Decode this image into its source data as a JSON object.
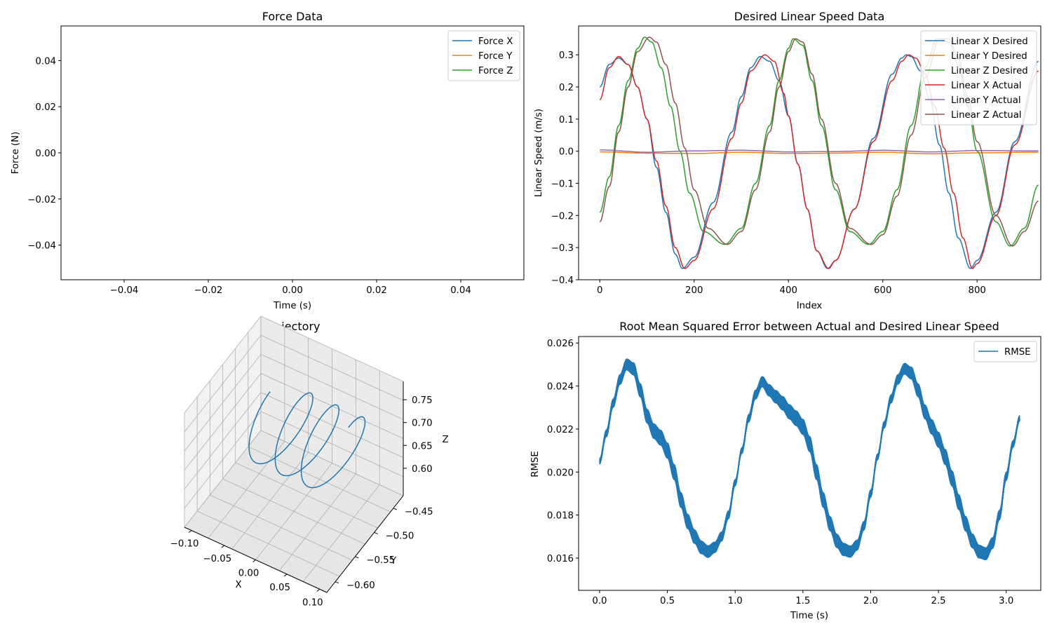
{
  "colors": {
    "c0": "#1f77b4",
    "c1": "#ff7f0e",
    "c2": "#2ca02c",
    "c3": "#d62728",
    "c4": "#9467bd",
    "c5": "#8c564b"
  },
  "chart_data": [
    {
      "id": "force",
      "type": "line",
      "title": "Force Data",
      "xlabel": "Time (s)",
      "ylabel": "Force (N)",
      "xlim": [
        -0.055,
        0.055
      ],
      "ylim": [
        -0.055,
        0.055
      ],
      "xticks": [
        "−0.04",
        "−0.02",
        "0.00",
        "0.02",
        "0.04"
      ],
      "xtick_values": [
        -0.04,
        -0.02,
        0.0,
        0.02,
        0.04
      ],
      "yticks": [
        "−0.04",
        "−0.02",
        "0.00",
        "0.02",
        "0.04"
      ],
      "ytick_values": [
        -0.04,
        -0.02,
        0.0,
        0.02,
        0.04
      ],
      "legend": "top-right",
      "series": [
        {
          "name": "Force X",
          "color": "#1f77b4",
          "values": []
        },
        {
          "name": "Force Y",
          "color": "#ff7f0e",
          "values": []
        },
        {
          "name": "Force Z",
          "color": "#2ca02c",
          "values": []
        }
      ]
    },
    {
      "id": "speed",
      "type": "line",
      "title": "Desired Linear Speed Data",
      "xlabel": "Index",
      "ylabel": "Linear Speed (m/s)",
      "xlim": [
        -45,
        935
      ],
      "ylim": [
        -0.4,
        0.39
      ],
      "xticks": [
        "0",
        "200",
        "400",
        "600",
        "800"
      ],
      "xtick_values": [
        0,
        200,
        400,
        600,
        800
      ],
      "yticks": [
        "−0.4",
        "−0.3",
        "−0.2",
        "−0.1",
        "0.0",
        "0.1",
        "0.2",
        "0.3"
      ],
      "ytick_values": [
        -0.4,
        -0.3,
        -0.2,
        -0.1,
        0.0,
        0.1,
        0.2,
        0.3
      ],
      "legend": "top-right",
      "series": [
        {
          "name": "Linear X Desired",
          "color": "#1f77b4",
          "x": [
            0,
            20,
            40,
            60,
            80,
            100,
            120,
            140,
            160,
            175,
            200,
            240,
            280,
            300,
            320,
            340,
            360,
            380,
            400,
            420,
            440,
            460,
            483,
            500,
            540,
            580,
            620,
            640,
            650,
            660,
            680,
            700,
            720,
            740,
            760,
            786,
            800,
            840,
            880,
            930
          ],
          "values": [
            0.2,
            0.27,
            0.29,
            0.27,
            0.2,
            0.1,
            -0.05,
            -0.19,
            -0.32,
            -0.365,
            -0.33,
            -0.16,
            0.06,
            0.17,
            0.26,
            0.295,
            0.28,
            0.22,
            0.11,
            -0.04,
            -0.18,
            -0.31,
            -0.365,
            -0.34,
            -0.18,
            0.04,
            0.24,
            0.29,
            0.3,
            0.295,
            0.25,
            0.16,
            0.02,
            -0.13,
            -0.27,
            -0.365,
            -0.34,
            -0.19,
            0.03,
            0.28
          ]
        },
        {
          "name": "Linear Y Desired",
          "color": "#ff7f0e",
          "x": [
            0,
            100,
            200,
            300,
            400,
            500,
            600,
            700,
            800,
            930
          ],
          "values": [
            -0.002,
            -0.006,
            -0.007,
            -0.003,
            -0.007,
            -0.006,
            -0.003,
            -0.008,
            -0.005,
            -0.003
          ]
        },
        {
          "name": "Linear Z Desired",
          "color": "#2ca02c",
          "x": [
            0,
            20,
            40,
            60,
            80,
            95,
            110,
            130,
            150,
            170,
            190,
            220,
            265,
            300,
            330,
            360,
            380,
            400,
            410,
            430,
            450,
            470,
            500,
            530,
            570,
            600,
            630,
            660,
            690,
            715,
            740,
            760,
            780,
            800,
            840,
            870,
            900,
            930
          ],
          "values": [
            -0.19,
            -0.08,
            0.08,
            0.22,
            0.32,
            0.355,
            0.34,
            0.26,
            0.14,
            0.0,
            -0.13,
            -0.25,
            -0.29,
            -0.24,
            -0.1,
            0.08,
            0.22,
            0.32,
            0.35,
            0.33,
            0.22,
            0.08,
            -0.12,
            -0.25,
            -0.29,
            -0.25,
            -0.12,
            0.08,
            0.26,
            0.35,
            0.34,
            0.27,
            0.14,
            0.0,
            -0.22,
            -0.295,
            -0.24,
            -0.105
          ]
        },
        {
          "name": "Linear X Actual",
          "color": "#d62728",
          "x": [
            0,
            20,
            40,
            60,
            80,
            100,
            120,
            140,
            160,
            180,
            200,
            240,
            280,
            300,
            320,
            350,
            370,
            390,
            400,
            420,
            440,
            460,
            485,
            500,
            540,
            580,
            620,
            640,
            655,
            670,
            690,
            710,
            730,
            750,
            770,
            790,
            800,
            840,
            880,
            930
          ],
          "values": [
            0.16,
            0.26,
            0.295,
            0.27,
            0.2,
            0.1,
            -0.03,
            -0.17,
            -0.3,
            -0.365,
            -0.34,
            -0.18,
            0.04,
            0.15,
            0.25,
            0.3,
            0.28,
            0.18,
            0.11,
            -0.04,
            -0.18,
            -0.31,
            -0.365,
            -0.34,
            -0.18,
            0.03,
            0.22,
            0.28,
            0.3,
            0.29,
            0.24,
            0.14,
            0.01,
            -0.13,
            -0.27,
            -0.365,
            -0.35,
            -0.2,
            0.02,
            0.25
          ]
        },
        {
          "name": "Linear Y Actual",
          "color": "#9467bd",
          "x": [
            0,
            100,
            200,
            300,
            400,
            500,
            600,
            700,
            800,
            930
          ],
          "values": [
            0.004,
            -0.003,
            0.001,
            0.003,
            -0.002,
            -0.001,
            0.003,
            -0.002,
            0.002,
            0.001
          ]
        },
        {
          "name": "Linear Z Actual",
          "color": "#8c564b",
          "x": [
            0,
            20,
            40,
            60,
            80,
            105,
            120,
            140,
            160,
            180,
            200,
            230,
            270,
            300,
            330,
            360,
            380,
            400,
            415,
            430,
            450,
            470,
            500,
            530,
            575,
            600,
            630,
            660,
            690,
            720,
            740,
            760,
            780,
            800,
            840,
            875,
            900,
            930
          ],
          "values": [
            -0.22,
            -0.11,
            0.06,
            0.2,
            0.31,
            0.355,
            0.34,
            0.27,
            0.15,
            0.01,
            -0.12,
            -0.24,
            -0.29,
            -0.25,
            -0.12,
            0.06,
            0.2,
            0.31,
            0.35,
            0.34,
            0.24,
            0.1,
            -0.1,
            -0.24,
            -0.29,
            -0.26,
            -0.14,
            0.05,
            0.23,
            0.35,
            0.35,
            0.29,
            0.17,
            0.03,
            -0.2,
            -0.295,
            -0.25,
            -0.155
          ]
        }
      ]
    },
    {
      "id": "trajectory",
      "type": "line",
      "title": "Trajectory",
      "xlabel": "X",
      "ylabel": "Y",
      "zlabel": "Z",
      "xticks": [
        "−0.10",
        "−0.05",
        "0.00",
        "0.05",
        "0.10"
      ],
      "yticks": [
        "−0.45",
        "−0.50",
        "−0.55",
        "−0.60"
      ],
      "zticks": [
        "0.75",
        "0.70",
        "0.65",
        "0.60"
      ],
      "grid": true,
      "series": [
        {
          "name": "",
          "color": "#1f77b4",
          "loops": 3,
          "x_range": [
            -0.1,
            0.1
          ],
          "y_range": [
            -0.6,
            -0.45
          ],
          "z_range": [
            0.6,
            0.75
          ]
        }
      ]
    },
    {
      "id": "rmse",
      "type": "line",
      "title": "Root Mean Squared Error between Actual and Desired Linear Speed",
      "xlabel": "Time (s)",
      "ylabel": "RMSE",
      "xlim": [
        -0.155,
        3.255
      ],
      "ylim": [
        0.0145,
        0.0263
      ],
      "xticks": [
        "0.0",
        "0.5",
        "1.0",
        "1.5",
        "2.0",
        "2.5",
        "3.0"
      ],
      "xtick_values": [
        0.0,
        0.5,
        1.0,
        1.5,
        2.0,
        2.5,
        3.0
      ],
      "yticks": [
        "0.016",
        "0.018",
        "0.020",
        "0.022",
        "0.024",
        "0.026"
      ],
      "ytick_values": [
        0.016,
        0.018,
        0.02,
        0.022,
        0.024,
        0.026
      ],
      "legend": "top-right",
      "series": [
        {
          "name": "RMSE",
          "color": "#1f77b4",
          "x": [
            0.0,
            0.05,
            0.1,
            0.15,
            0.2,
            0.25,
            0.3,
            0.35,
            0.4,
            0.45,
            0.5,
            0.55,
            0.6,
            0.65,
            0.7,
            0.75,
            0.8,
            0.85,
            0.9,
            0.95,
            1.0,
            1.05,
            1.1,
            1.15,
            1.2,
            1.25,
            1.3,
            1.35,
            1.4,
            1.45,
            1.5,
            1.55,
            1.6,
            1.65,
            1.7,
            1.75,
            1.8,
            1.85,
            1.9,
            1.95,
            2.0,
            2.05,
            2.1,
            2.15,
            2.2,
            2.25,
            2.3,
            2.35,
            2.4,
            2.45,
            2.5,
            2.55,
            2.6,
            2.65,
            2.7,
            2.75,
            2.8,
            2.85,
            2.9,
            2.95,
            3.0,
            3.05,
            3.1
          ],
          "values": [
            0.0205,
            0.0218,
            0.0232,
            0.0243,
            0.025,
            0.0248,
            0.0238,
            0.0226,
            0.0219,
            0.0216,
            0.021,
            0.02,
            0.0187,
            0.0177,
            0.017,
            0.0165,
            0.0163,
            0.0165,
            0.017,
            0.018,
            0.0195,
            0.021,
            0.0225,
            0.0236,
            0.0242,
            0.0238,
            0.0235,
            0.0232,
            0.0228,
            0.0225,
            0.0221,
            0.0213,
            0.02,
            0.0187,
            0.0176,
            0.0168,
            0.0164,
            0.0163,
            0.0166,
            0.0175,
            0.019,
            0.0207,
            0.0222,
            0.0234,
            0.0243,
            0.0248,
            0.0246,
            0.0238,
            0.0228,
            0.0221,
            0.0215,
            0.0207,
            0.0197,
            0.0186,
            0.0176,
            0.0168,
            0.0163,
            0.0162,
            0.0167,
            0.018,
            0.0198,
            0.0213,
            0.0225
          ],
          "noise": 0.0007
        }
      ]
    }
  ]
}
